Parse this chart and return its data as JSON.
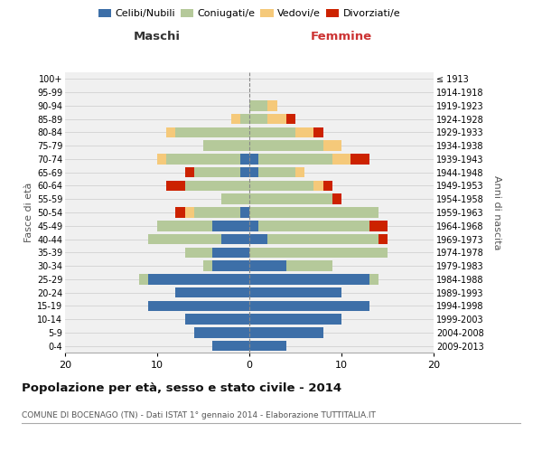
{
  "age_groups": [
    "0-4",
    "5-9",
    "10-14",
    "15-19",
    "20-24",
    "25-29",
    "30-34",
    "35-39",
    "40-44",
    "45-49",
    "50-54",
    "55-59",
    "60-64",
    "65-69",
    "70-74",
    "75-79",
    "80-84",
    "85-89",
    "90-94",
    "95-99",
    "100+"
  ],
  "birth_years": [
    "2009-2013",
    "2004-2008",
    "1999-2003",
    "1994-1998",
    "1989-1993",
    "1984-1988",
    "1979-1983",
    "1974-1978",
    "1969-1973",
    "1964-1968",
    "1959-1963",
    "1954-1958",
    "1949-1953",
    "1944-1948",
    "1939-1943",
    "1934-1938",
    "1929-1933",
    "1924-1928",
    "1919-1923",
    "1914-1918",
    "≤ 1913"
  ],
  "males": {
    "celibi": [
      4,
      6,
      7,
      11,
      8,
      11,
      4,
      4,
      3,
      4,
      1,
      0,
      0,
      1,
      1,
      0,
      0,
      0,
      0,
      0,
      0
    ],
    "coniugati": [
      0,
      0,
      0,
      0,
      0,
      1,
      1,
      3,
      8,
      6,
      5,
      3,
      7,
      5,
      8,
      5,
      8,
      1,
      0,
      0,
      0
    ],
    "vedovi": [
      0,
      0,
      0,
      0,
      0,
      0,
      0,
      0,
      0,
      0,
      1,
      0,
      0,
      0,
      1,
      0,
      1,
      1,
      0,
      0,
      0
    ],
    "divorziati": [
      0,
      0,
      0,
      0,
      0,
      0,
      0,
      0,
      0,
      0,
      1,
      0,
      2,
      1,
      0,
      0,
      0,
      0,
      0,
      0,
      0
    ]
  },
  "females": {
    "nubili": [
      4,
      8,
      10,
      13,
      10,
      13,
      4,
      0,
      2,
      1,
      0,
      0,
      0,
      1,
      1,
      0,
      0,
      0,
      0,
      0,
      0
    ],
    "coniugate": [
      0,
      0,
      0,
      0,
      0,
      1,
      5,
      15,
      12,
      12,
      14,
      9,
      7,
      4,
      8,
      8,
      5,
      2,
      2,
      0,
      0
    ],
    "vedove": [
      0,
      0,
      0,
      0,
      0,
      0,
      0,
      0,
      0,
      0,
      0,
      0,
      1,
      1,
      2,
      2,
      2,
      2,
      1,
      0,
      0
    ],
    "divorziate": [
      0,
      0,
      0,
      0,
      0,
      0,
      0,
      0,
      1,
      2,
      0,
      1,
      1,
      0,
      2,
      0,
      1,
      1,
      0,
      0,
      0
    ]
  },
  "colors": {
    "celibi": "#3d6fa8",
    "coniugati": "#b5c99a",
    "vedovi": "#f5c97a",
    "divorziati": "#cc2200"
  },
  "title": "Popolazione per età, sesso e stato civile - 2014",
  "subtitle": "COMUNE DI BOCENAGO (TN) - Dati ISTAT 1° gennaio 2014 - Elaborazione TUTTITALIA.IT",
  "label_maschi": "Maschi",
  "label_femmine": "Femmine",
  "ylabel_left": "Fasce di età",
  "ylabel_right": "Anni di nascita",
  "xlim": 20,
  "legend_labels": [
    "Celibi/Nubili",
    "Coniugati/e",
    "Vedovi/e",
    "Divorziati/e"
  ],
  "background_color": "#ffffff",
  "plot_bg": "#f0f0f0",
  "grid_color": "#cccccc"
}
